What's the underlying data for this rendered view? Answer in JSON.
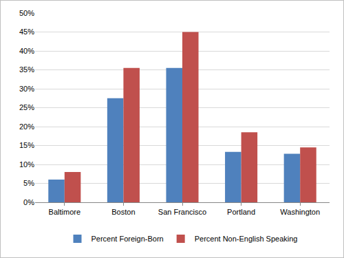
{
  "chart_data": {
    "type": "bar",
    "categories": [
      "Baltimore",
      "Boston",
      "San Francisco",
      "Portland",
      "Washington"
    ],
    "series": [
      {
        "name": "Percent Foreign-Born",
        "color": "#4f81bd",
        "values": [
          6,
          27.5,
          35.5,
          13.3,
          12.8
        ]
      },
      {
        "name": "Percent Non-English Speaking",
        "color": "#c0504d",
        "values": [
          8,
          35.5,
          45,
          18.5,
          14.5
        ]
      }
    ],
    "ylim": [
      0,
      50
    ],
    "yticks": [
      {
        "value": 0,
        "label": "0%"
      },
      {
        "value": 5,
        "label": "5%"
      },
      {
        "value": 10,
        "label": "10%"
      },
      {
        "value": 15,
        "label": "15%"
      },
      {
        "value": 20,
        "label": "20%"
      },
      {
        "value": 25,
        "label": "25%"
      },
      {
        "value": 30,
        "label": "30%"
      },
      {
        "value": 35,
        "label": "35%"
      },
      {
        "value": 40,
        "label": "40%"
      },
      {
        "value": 45,
        "label": "45%"
      },
      {
        "value": 50,
        "label": "50%"
      }
    ],
    "grid": true,
    "legend": "bottom"
  }
}
